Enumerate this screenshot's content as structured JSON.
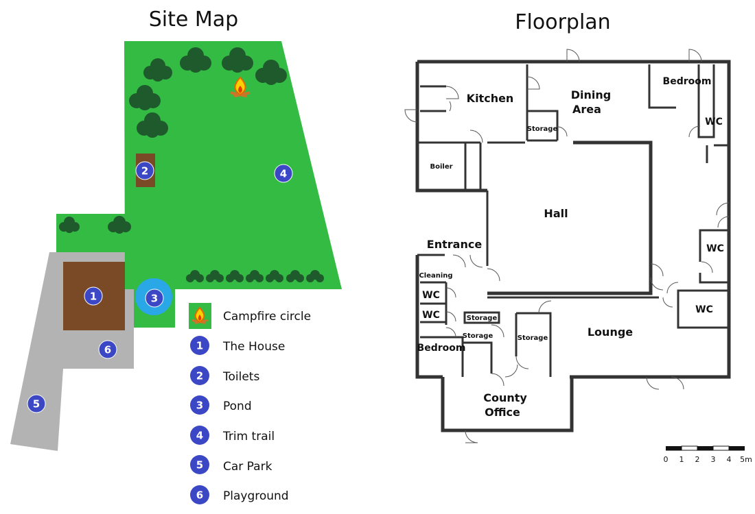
{
  "site_map": {
    "title": "Site Map",
    "colors": {
      "grass": "#33bb44",
      "tree": "#1f5a2c",
      "building": "#7a4a26",
      "carpark": "#b3b3b3",
      "badge": "#3b47c4",
      "pond": "#2aa7e6"
    },
    "markers": [
      {
        "num": "1",
        "name": "The House"
      },
      {
        "num": "2",
        "name": "Toilets"
      },
      {
        "num": "3",
        "name": "Pond"
      },
      {
        "num": "4",
        "name": "Trim trail"
      },
      {
        "num": "5",
        "name": "Car Park"
      },
      {
        "num": "6",
        "name": "Playground"
      }
    ],
    "legend": {
      "campfire_label": "Campfire circle",
      "items": [
        {
          "num": "1",
          "label": "The House"
        },
        {
          "num": "2",
          "label": "Toilets"
        },
        {
          "num": "3",
          "label": "Pond"
        },
        {
          "num": "4",
          "label": "Trim trail"
        },
        {
          "num": "5",
          "label": "Car Park"
        },
        {
          "num": "6",
          "label": "Playground"
        }
      ]
    }
  },
  "floorplan": {
    "title": "Floorplan",
    "rooms": {
      "kitchen": "Kitchen",
      "dining_1": "Dining",
      "dining_2": "Area",
      "bedroom_top": "Bedroom",
      "wc_top": "WC",
      "storage_dining": "Storage",
      "boiler": "Boiler",
      "hall": "Hall",
      "entrance": "Entrance",
      "cleaning": "Cleaning",
      "wc_1": "WC",
      "wc_2": "WC",
      "storage_1": "Storage",
      "storage_2": "Storage",
      "storage_3": "Storage",
      "bedroom_bottom": "Bedroom",
      "lounge": "Lounge",
      "wc_right_1": "WC",
      "wc_right_2": "WC",
      "county_1": "County",
      "county_2": "Office"
    },
    "scale": {
      "ticks": [
        "0",
        "1",
        "2",
        "3",
        "4",
        "5m"
      ]
    }
  }
}
